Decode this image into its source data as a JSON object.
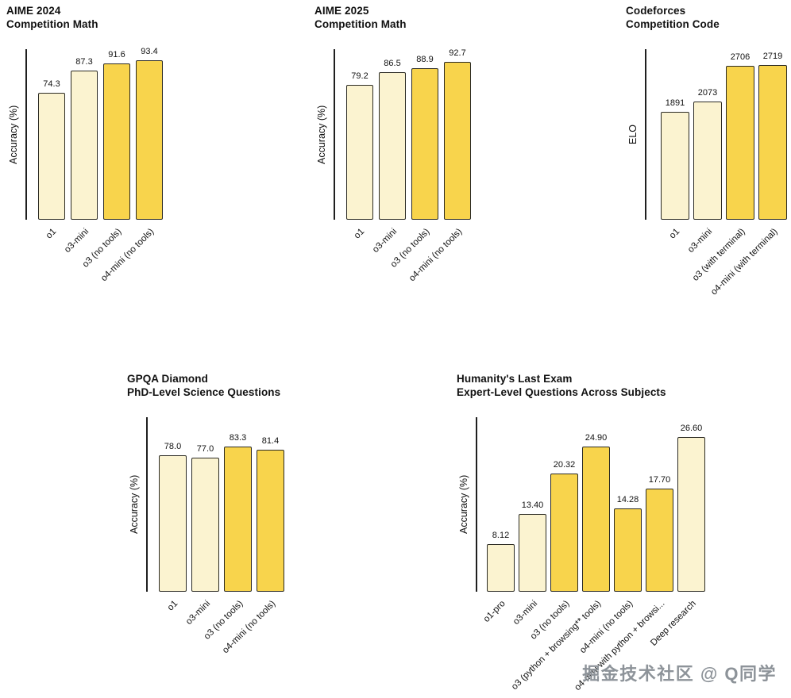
{
  "page": {
    "watermark": "掘金技术社区 @ Q同学"
  },
  "palette": {
    "cream": "#FBF3D0",
    "yellow": "#F8D44C",
    "bar_border": "#2B2A23",
    "axis": "#1F1F1F",
    "text": "#111111",
    "watermark": "#8D9399"
  },
  "chart_data": [
    {
      "type": "bar",
      "title": "AIME 2024",
      "subtitle": "Competition Math",
      "ylabel": "Accuracy (%)",
      "ylim": [
        0,
        100
      ],
      "grid": false,
      "categories": [
        "o1",
        "o3-mini",
        "o3 (no tools)",
        "o4-mini (no tools)"
      ],
      "values": [
        74.3,
        87.3,
        91.6,
        93.4
      ],
      "value_labels": [
        "74.3",
        "87.3",
        "91.6",
        "93.4"
      ],
      "bar_colors": [
        "cream",
        "cream",
        "yellow",
        "yellow"
      ]
    },
    {
      "type": "bar",
      "title": "AIME 2025",
      "subtitle": "Competition Math",
      "ylabel": "Accuracy (%)",
      "ylim": [
        0,
        100
      ],
      "grid": false,
      "categories": [
        "o1",
        "o3-mini",
        "o3 (no tools)",
        "o4-mini (no tools)"
      ],
      "values": [
        79.2,
        86.5,
        88.9,
        92.7
      ],
      "value_labels": [
        "79.2",
        "86.5",
        "88.9",
        "92.7"
      ],
      "bar_colors": [
        "cream",
        "cream",
        "yellow",
        "yellow"
      ]
    },
    {
      "type": "bar",
      "title": "Codeforces",
      "subtitle": "Competition Code",
      "ylabel": "ELO",
      "ylim": [
        0,
        3000
      ],
      "grid": false,
      "categories": [
        "o1",
        "o3-mini",
        "o3 (with terminal)",
        "o4-mini (with terminal)"
      ],
      "values": [
        1891,
        2073,
        2706,
        2719
      ],
      "value_labels": [
        "1891",
        "2073",
        "2706",
        "2719"
      ],
      "bar_colors": [
        "cream",
        "cream",
        "yellow",
        "yellow"
      ]
    },
    {
      "type": "bar",
      "title": "GPQA Diamond",
      "subtitle": "PhD-Level Science Questions",
      "ylabel": "Accuracy (%)",
      "ylim": [
        0,
        100
      ],
      "grid": false,
      "categories": [
        "o1",
        "o3-mini",
        "o3 (no tools)",
        "o4-mini (no tools)"
      ],
      "values": [
        78.0,
        77.0,
        83.3,
        81.4
      ],
      "value_labels": [
        "78.0",
        "77.0",
        "83.3",
        "81.4"
      ],
      "bar_colors": [
        "cream",
        "cream",
        "yellow",
        "yellow"
      ]
    },
    {
      "type": "bar",
      "title": "Humanity's Last Exam",
      "subtitle": "Expert-Level Questions Across Subjects",
      "ylabel": "Accuracy (%)",
      "ylim": [
        0,
        30
      ],
      "grid": false,
      "categories": [
        "o1-pro",
        "o3-mini",
        "o3 (no tools)",
        "o3 (python + browsing** tools)",
        "o4-mini (no tools)",
        "o4-mini with python + browsi...",
        "Deep research"
      ],
      "values": [
        8.12,
        13.4,
        20.32,
        24.9,
        14.28,
        17.7,
        26.6
      ],
      "value_labels": [
        "8.12",
        "13.40",
        "20.32",
        "24.90",
        "14.28",
        "17.70",
        "26.60"
      ],
      "bar_colors": [
        "cream",
        "cream",
        "yellow",
        "yellow",
        "yellow",
        "yellow",
        "cream"
      ]
    }
  ]
}
